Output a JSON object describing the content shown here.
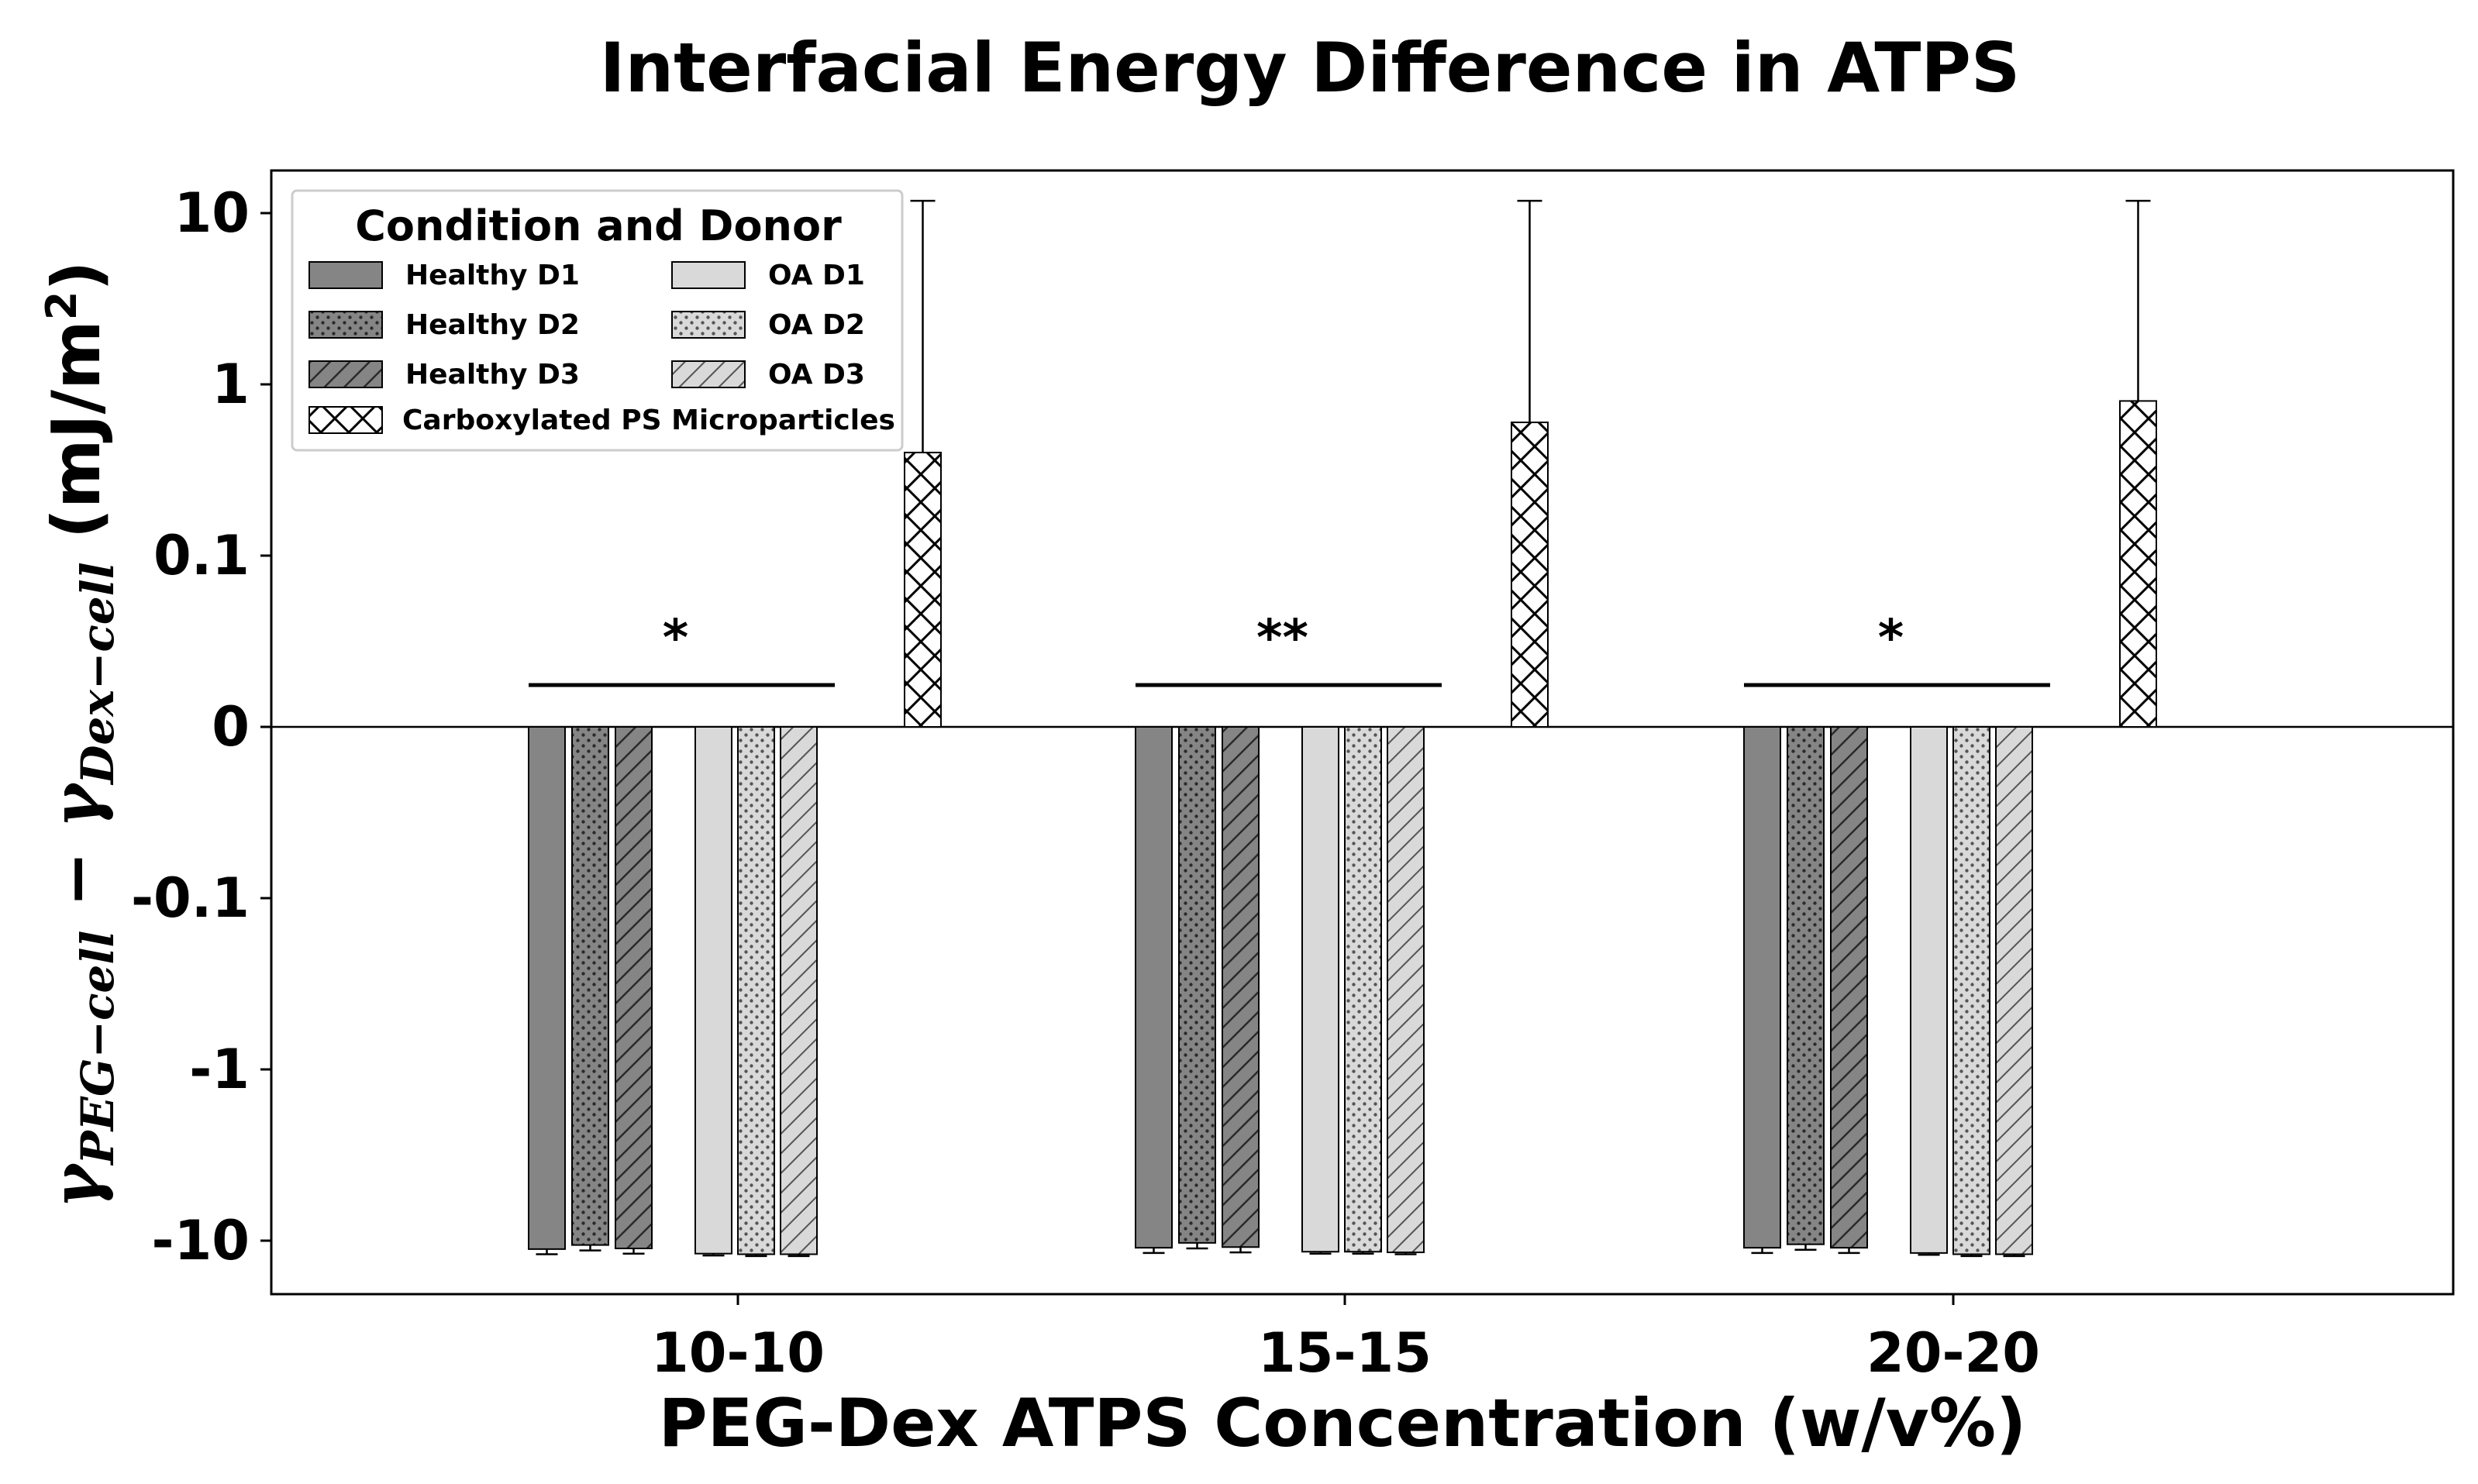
{
  "chart_data": {
    "type": "bar",
    "title": "Interfacial Energy Difference in ATPS",
    "xlabel": "PEG-Dex ATPS Concentration (w/v%)",
    "ylabel": {
      "gamma1": "γ",
      "sub1": "PEG−cell",
      "minus": " − ",
      "gamma2": "γ",
      "sub2": "Dex−cell",
      "units_open": " (mJ/m",
      "units_sup": "2",
      "units_close": ")"
    },
    "yscale": "symlog",
    "yticks": [
      {
        "value": 10,
        "label": "10"
      },
      {
        "value": 1,
        "label": "1"
      },
      {
        "value": 0.1,
        "label": "0.1"
      },
      {
        "value": 0,
        "label": "0"
      },
      {
        "value": -0.1,
        "label": "-0.1"
      },
      {
        "value": -1,
        "label": "-1"
      },
      {
        "value": -10,
        "label": "-10"
      }
    ],
    "ylim": [
      -13,
      13
    ],
    "categories": [
      "10-10",
      "15-15",
      "20-20"
    ],
    "legend": {
      "title": "Condition and Donor",
      "location": "top-left",
      "ncol": 2
    },
    "series": [
      {
        "name": "Healthy D1",
        "fill": "#858585",
        "pattern": "solid",
        "values": [
          -11.2,
          -11.0,
          -11.0
        ],
        "err": [
          0.8,
          0.8,
          0.8
        ]
      },
      {
        "name": "Healthy D2",
        "fill": "#858585",
        "pattern": "dots",
        "values": [
          -10.6,
          -10.3,
          -10.5
        ],
        "err": [
          0.8,
          0.8,
          0.8
        ]
      },
      {
        "name": "Healthy D3",
        "fill": "#858585",
        "pattern": "diag",
        "values": [
          -11.1,
          -10.9,
          -11.0
        ],
        "err": [
          0.8,
          0.8,
          0.8
        ]
      },
      {
        "name": "OA D1",
        "fill": "#d9d9d9",
        "pattern": "solid",
        "values": [
          -11.9,
          -11.6,
          -11.8
        ],
        "err": [
          0.3,
          0.3,
          0.3
        ]
      },
      {
        "name": "OA D2",
        "fill": "#d9d9d9",
        "pattern": "dots",
        "values": [
          -12.0,
          -11.6,
          -12.0
        ],
        "err": [
          0.3,
          0.3,
          0.3
        ]
      },
      {
        "name": "OA D3",
        "fill": "#d9d9d9",
        "pattern": "diag",
        "values": [
          -12.0,
          -11.7,
          -12.0
        ],
        "err": [
          0.3,
          0.3,
          0.3
        ]
      },
      {
        "name": "Carboxylated PS Microparticles",
        "fill": "#ffffff",
        "pattern": "cross",
        "values": [
          0.4,
          0.6,
          0.8
        ],
        "err_top": [
          11.8,
          11.8,
          11.8
        ]
      }
    ],
    "significance": [
      {
        "category": "10-10",
        "label": "*"
      },
      {
        "category": "15-15",
        "label": "**"
      },
      {
        "category": "20-20",
        "label": "*"
      }
    ]
  }
}
